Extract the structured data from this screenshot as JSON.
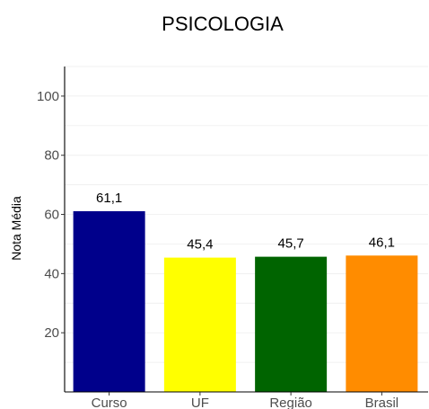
{
  "chart_data": {
    "type": "bar",
    "title": "PSICOLOGIA",
    "xlabel": "",
    "ylabel": "Nota Média",
    "categories": [
      "Curso",
      "UF",
      "Região",
      "Brasil"
    ],
    "values": [
      61.1,
      45.4,
      45.7,
      46.1
    ],
    "data_labels": [
      "61,1",
      "45,4",
      "45,7",
      "46,1"
    ],
    "ylim": [
      0,
      110
    ],
    "yticks": [
      20,
      40,
      60,
      80,
      100
    ],
    "grid": true,
    "legend": "none",
    "colors": [
      "#00008b",
      "#ffff00",
      "#006400",
      "#ff8c00"
    ]
  }
}
